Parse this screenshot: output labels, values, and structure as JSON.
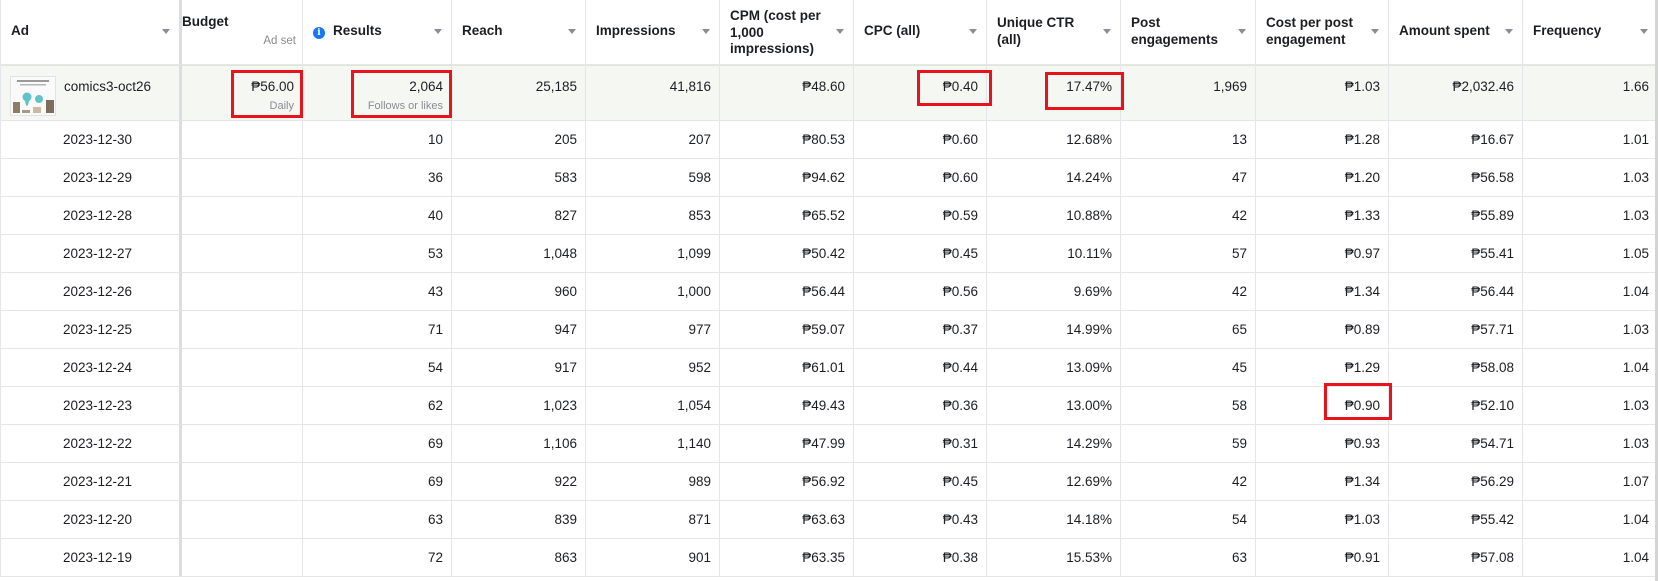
{
  "columns": {
    "ad": "Ad",
    "budget": "Budget",
    "budget_sub": "Ad set",
    "results": "Results",
    "reach": "Reach",
    "impressions": "Impressions",
    "cpm": "CPM (cost per 1,000 impressions)",
    "cpc": "CPC (all)",
    "unique_ctr": "Unique CTR (all)",
    "post_engagements": "Post engagements",
    "cost_per_engagement": "Cost per post engagement",
    "amount_spent": "Amount spent",
    "frequency": "Frequency"
  },
  "icons": {
    "results_info": "info-icon",
    "sort": "chevron-down-icon"
  },
  "colors": {
    "highlight": "#e8141b",
    "info_blue": "#1877f2",
    "summary_bg": "#f5f7f3"
  },
  "summary": {
    "ad_name": "comics3-oct26",
    "budget": "₱56.00",
    "budget_sub": "Daily",
    "results": "2,064",
    "results_sub": "Follows or likes",
    "reach": "25,185",
    "impressions": "41,816",
    "cpm": "₱48.60",
    "cpc": "₱0.40",
    "unique_ctr": "17.47%",
    "post_engagements": "1,969",
    "cost_per_engagement": "₱1.03",
    "amount_spent": "₱2,032.46",
    "frequency": "1.66"
  },
  "rows": [
    {
      "date": "2023-12-30",
      "results": "10",
      "reach": "205",
      "impressions": "207",
      "cpm": "₱80.53",
      "cpc": "₱0.60",
      "unique_ctr": "12.68%",
      "post_engagements": "13",
      "cost_per_engagement": "₱1.28",
      "amount_spent": "₱16.67",
      "frequency": "1.01"
    },
    {
      "date": "2023-12-29",
      "results": "36",
      "reach": "583",
      "impressions": "598",
      "cpm": "₱94.62",
      "cpc": "₱0.60",
      "unique_ctr": "14.24%",
      "post_engagements": "47",
      "cost_per_engagement": "₱1.20",
      "amount_spent": "₱56.58",
      "frequency": "1.03"
    },
    {
      "date": "2023-12-28",
      "results": "40",
      "reach": "827",
      "impressions": "853",
      "cpm": "₱65.52",
      "cpc": "₱0.59",
      "unique_ctr": "10.88%",
      "post_engagements": "42",
      "cost_per_engagement": "₱1.33",
      "amount_spent": "₱55.89",
      "frequency": "1.03"
    },
    {
      "date": "2023-12-27",
      "results": "53",
      "reach": "1,048",
      "impressions": "1,099",
      "cpm": "₱50.42",
      "cpc": "₱0.45",
      "unique_ctr": "10.11%",
      "post_engagements": "57",
      "cost_per_engagement": "₱0.97",
      "amount_spent": "₱55.41",
      "frequency": "1.05"
    },
    {
      "date": "2023-12-26",
      "results": "43",
      "reach": "960",
      "impressions": "1,000",
      "cpm": "₱56.44",
      "cpc": "₱0.56",
      "unique_ctr": "9.69%",
      "post_engagements": "42",
      "cost_per_engagement": "₱1.34",
      "amount_spent": "₱56.44",
      "frequency": "1.04"
    },
    {
      "date": "2023-12-25",
      "results": "71",
      "reach": "947",
      "impressions": "977",
      "cpm": "₱59.07",
      "cpc": "₱0.37",
      "unique_ctr": "14.99%",
      "post_engagements": "65",
      "cost_per_engagement": "₱0.89",
      "amount_spent": "₱57.71",
      "frequency": "1.03"
    },
    {
      "date": "2023-12-24",
      "results": "54",
      "reach": "917",
      "impressions": "952",
      "cpm": "₱61.01",
      "cpc": "₱0.44",
      "unique_ctr": "13.09%",
      "post_engagements": "45",
      "cost_per_engagement": "₱1.29",
      "amount_spent": "₱58.08",
      "frequency": "1.04"
    },
    {
      "date": "2023-12-23",
      "results": "62",
      "reach": "1,023",
      "impressions": "1,054",
      "cpm": "₱49.43",
      "cpc": "₱0.36",
      "unique_ctr": "13.00%",
      "post_engagements": "58",
      "cost_per_engagement": "₱0.90",
      "amount_spent": "₱52.10",
      "frequency": "1.03"
    },
    {
      "date": "2023-12-22",
      "results": "69",
      "reach": "1,106",
      "impressions": "1,140",
      "cpm": "₱47.99",
      "cpc": "₱0.31",
      "unique_ctr": "14.29%",
      "post_engagements": "59",
      "cost_per_engagement": "₱0.93",
      "amount_spent": "₱54.71",
      "frequency": "1.03"
    },
    {
      "date": "2023-12-21",
      "results": "69",
      "reach": "922",
      "impressions": "989",
      "cpm": "₱56.92",
      "cpc": "₱0.45",
      "unique_ctr": "12.69%",
      "post_engagements": "42",
      "cost_per_engagement": "₱1.34",
      "amount_spent": "₱56.29",
      "frequency": "1.07"
    },
    {
      "date": "2023-12-20",
      "results": "63",
      "reach": "839",
      "impressions": "871",
      "cpm": "₱63.63",
      "cpc": "₱0.43",
      "unique_ctr": "14.18%",
      "post_engagements": "54",
      "cost_per_engagement": "₱1.03",
      "amount_spent": "₱55.42",
      "frequency": "1.04"
    },
    {
      "date": "2023-12-19",
      "results": "72",
      "reach": "863",
      "impressions": "901",
      "cpm": "₱63.35",
      "cpc": "₱0.38",
      "unique_ctr": "15.53%",
      "post_engagements": "63",
      "cost_per_engagement": "₱0.91",
      "amount_spent": "₱57.08",
      "frequency": "1.04"
    }
  ]
}
